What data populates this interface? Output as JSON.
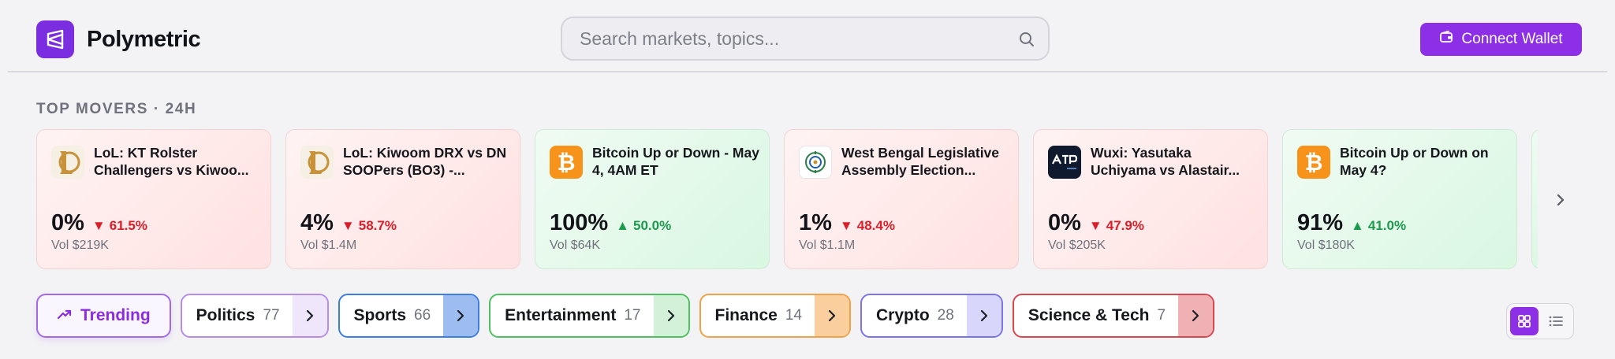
{
  "brand": {
    "name": "Polymetric",
    "logo_icon": "polymetric-logo-icon",
    "logo_color": "#7b2ee0"
  },
  "search": {
    "placeholder": "Search markets, topics...",
    "value": "",
    "icon": "search-icon"
  },
  "connect_wallet": {
    "label": "Connect Wallet",
    "icon": "wallet-icon",
    "color": "#8e2fe8"
  },
  "top_movers": {
    "title": "TOP MOVERS · 24H",
    "cards": [
      {
        "title": "LoL: KT Rolster Challengers vs Kiwoo...",
        "icon": "league-of-legends-icon",
        "percent": "0%",
        "change": "61.5%",
        "direction": "down",
        "volume": "Vol $219K"
      },
      {
        "title": "LoL: Kiwoom DRX vs DN SOOPers (BO3) -...",
        "icon": "league-of-legends-icon",
        "percent": "4%",
        "change": "58.7%",
        "direction": "down",
        "volume": "Vol $1.4M"
      },
      {
        "title": "Bitcoin Up or Down - May 4, 4AM ET",
        "icon": "bitcoin-icon",
        "percent": "100%",
        "change": "50.0%",
        "direction": "up",
        "volume": "Vol $64K"
      },
      {
        "title": "West Bengal Legislative Assembly Election...",
        "icon": "west-bengal-emblem-icon",
        "percent": "1%",
        "change": "48.4%",
        "direction": "down",
        "volume": "Vol $1.1M"
      },
      {
        "title": "Wuxi: Yasutaka Uchiyama vs Alastair...",
        "icon": "atp-tour-icon",
        "percent": "0%",
        "change": "47.9%",
        "direction": "down",
        "volume": "Vol $205K"
      },
      {
        "title": "Bitcoin Up or Down on May 4?",
        "icon": "bitcoin-icon",
        "percent": "91%",
        "change": "41.0%",
        "direction": "up",
        "volume": "Vol $180K"
      }
    ],
    "next_icon": "chevron-right-icon"
  },
  "categories": [
    {
      "label": "Trending",
      "icon": "trending-up-icon",
      "active": true,
      "color": "#8a2ce0"
    },
    {
      "label": "Politics",
      "count": "77",
      "color": "#b58de8",
      "arrow_bg": "#efe6fb"
    },
    {
      "label": "Sports",
      "count": "66",
      "color": "#3b7de0",
      "arrow_bg": "#9dbdf0"
    },
    {
      "label": "Entertainment",
      "count": "17",
      "color": "#4fbf5f",
      "arrow_bg": "#d3f1d8"
    },
    {
      "label": "Finance",
      "count": "14",
      "color": "#f0a24a",
      "arrow_bg": "#fbcf9d"
    },
    {
      "label": "Crypto",
      "count": "28",
      "color": "#7b73e8",
      "arrow_bg": "#d8d6fa"
    },
    {
      "label": "Science & Tech",
      "count": "7",
      "color": "#d8474f",
      "arrow_bg": "#efb1b4"
    }
  ],
  "view_toggle": {
    "options": [
      "grid-view-icon",
      "list-view-icon"
    ],
    "active": "grid-view-icon"
  },
  "colors": {
    "down": "#d81f2a",
    "up": "#1c9a4e",
    "bitcoin": "#f7931a"
  }
}
